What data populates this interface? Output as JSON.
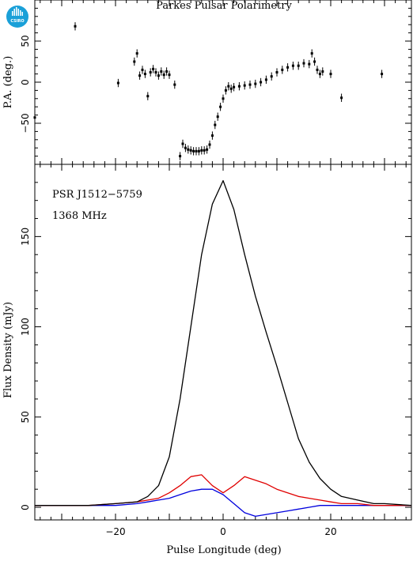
{
  "title": "Parkes Pulsar Polarimetry",
  "logo": {
    "text": "CSIRO",
    "color": "#1aa0d8"
  },
  "annotations": [
    "PSR J1512−5759",
    "1368 MHz"
  ],
  "colors": {
    "total": "#000000",
    "linear": "#e00000",
    "circular": "#0000dd"
  },
  "chart_data": [
    {
      "type": "scatter",
      "name": "position-angle",
      "ylabel": "P.A. (deg.)",
      "xlim": [
        -35,
        35
      ],
      "ylim": [
        -100,
        100
      ],
      "yticks": [
        -50,
        0,
        50
      ],
      "xticks": [
        -20,
        0,
        20
      ],
      "error_bar": 5,
      "points": [
        [
          -35,
          -43
        ],
        [
          -27.5,
          68
        ],
        [
          -19.5,
          -1
        ],
        [
          -16.5,
          25
        ],
        [
          -16,
          35
        ],
        [
          -15.5,
          8
        ],
        [
          -15,
          15
        ],
        [
          -14.5,
          10
        ],
        [
          -14,
          -17
        ],
        [
          -13.5,
          12
        ],
        [
          -13,
          16
        ],
        [
          -12.5,
          12
        ],
        [
          -12,
          8
        ],
        [
          -11.5,
          13
        ],
        [
          -11,
          9
        ],
        [
          -10.5,
          13
        ],
        [
          -10,
          9
        ],
        [
          -9,
          -3
        ],
        [
          -8,
          -90
        ],
        [
          -7.5,
          -75
        ],
        [
          -7,
          -80
        ],
        [
          -6.5,
          -82
        ],
        [
          -6,
          -83
        ],
        [
          -5.5,
          -84
        ],
        [
          -5,
          -84
        ],
        [
          -4.5,
          -84
        ],
        [
          -4,
          -83
        ],
        [
          -3.5,
          -83
        ],
        [
          -3,
          -82
        ],
        [
          -2.5,
          -76
        ],
        [
          -2,
          -65
        ],
        [
          -1.5,
          -52
        ],
        [
          -1,
          -42
        ],
        [
          -0.5,
          -30
        ],
        [
          0,
          -20
        ],
        [
          0.5,
          -10
        ],
        [
          1,
          -5
        ],
        [
          1.5,
          -8
        ],
        [
          2,
          -6
        ],
        [
          3,
          -5
        ],
        [
          4,
          -4
        ],
        [
          5,
          -3
        ],
        [
          6,
          -2
        ],
        [
          7,
          0
        ],
        [
          8,
          3
        ],
        [
          9,
          7
        ],
        [
          10,
          12
        ],
        [
          11,
          15
        ],
        [
          12,
          18
        ],
        [
          13,
          20
        ],
        [
          14,
          20
        ],
        [
          15,
          23
        ],
        [
          16,
          22
        ],
        [
          16.5,
          35
        ],
        [
          17,
          25
        ],
        [
          17.5,
          15
        ],
        [
          18,
          10
        ],
        [
          18.5,
          13
        ],
        [
          20,
          10
        ],
        [
          22,
          -19
        ],
        [
          29.5,
          10
        ]
      ]
    },
    {
      "type": "line",
      "name": "profile",
      "xlabel": "Pulse Longitude (deg)",
      "ylabel": "Flux Density (mJy)",
      "xlim": [
        -35,
        35
      ],
      "ylim": [
        -7,
        190
      ],
      "yticks": [
        0,
        50,
        100,
        150
      ],
      "xticks": [
        -20,
        0,
        20
      ],
      "x": [
        -35,
        -30,
        -25,
        -20,
        -16,
        -14,
        -12,
        -10,
        -8,
        -6,
        -4,
        -2,
        0,
        2,
        4,
        6,
        8,
        10,
        12,
        14,
        16,
        18,
        20,
        22,
        25,
        28,
        30,
        35
      ],
      "series": [
        {
          "key": "total",
          "values": [
            1,
            1,
            1,
            2,
            3,
            6,
            12,
            28,
            60,
            100,
            140,
            168,
            181,
            165,
            140,
            117,
            97,
            78,
            58,
            38,
            25,
            16,
            10,
            6,
            4,
            2,
            2,
            1
          ]
        },
        {
          "key": "linear",
          "values": [
            1,
            1,
            1,
            2,
            3,
            4,
            5,
            8,
            12,
            17,
            18,
            12,
            8,
            12,
            17,
            15,
            13,
            10,
            8,
            6,
            5,
            4,
            3,
            2,
            2,
            1,
            1,
            1
          ]
        },
        {
          "key": "circular",
          "values": [
            1,
            1,
            1,
            1,
            2,
            3,
            4,
            5,
            7,
            9,
            10,
            10,
            7,
            2,
            -3,
            -5,
            -4,
            -3,
            -2,
            -1,
            0,
            1,
            1,
            1,
            1,
            1,
            1,
            1
          ]
        }
      ]
    }
  ]
}
